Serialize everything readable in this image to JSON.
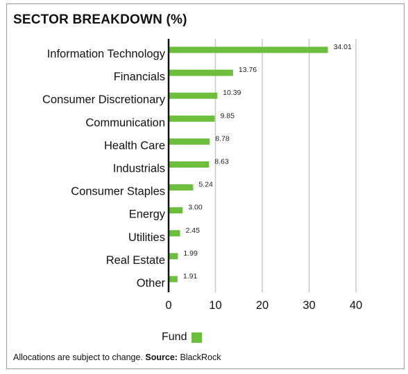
{
  "title": "SECTOR BREAKDOWN (%)",
  "legend": {
    "label": "Fund"
  },
  "footer": {
    "note": "Allocations are subject to change.",
    "source_label": "Source:",
    "source_value": "BlackRock"
  },
  "colors": {
    "bar": "#6DBE3C",
    "axis": "#111111",
    "grid": "#c8c8c8"
  },
  "chart_data": {
    "type": "bar",
    "orientation": "horizontal",
    "categories": [
      "Information Technology",
      "Financials",
      "Consumer Discretionary",
      "Communication",
      "Health Care",
      "Industrials",
      "Consumer Staples",
      "Energy",
      "Utilities",
      "Real Estate",
      "Other"
    ],
    "series": [
      {
        "name": "Fund",
        "values": [
          34.01,
          13.76,
          10.39,
          9.85,
          8.78,
          8.63,
          5.24,
          3.0,
          2.45,
          1.99,
          1.91
        ]
      }
    ],
    "value_labels": [
      "34.01",
      "13.76",
      "10.39",
      "9.85",
      "8.78",
      "8.63",
      "5.24",
      "3.00",
      "2.45",
      "1.99",
      "1.91"
    ],
    "xticks": [
      "0",
      "10",
      "20",
      "30",
      "40"
    ],
    "xlim": [
      0,
      40
    ],
    "grid": true,
    "legend_position": "bottom"
  }
}
